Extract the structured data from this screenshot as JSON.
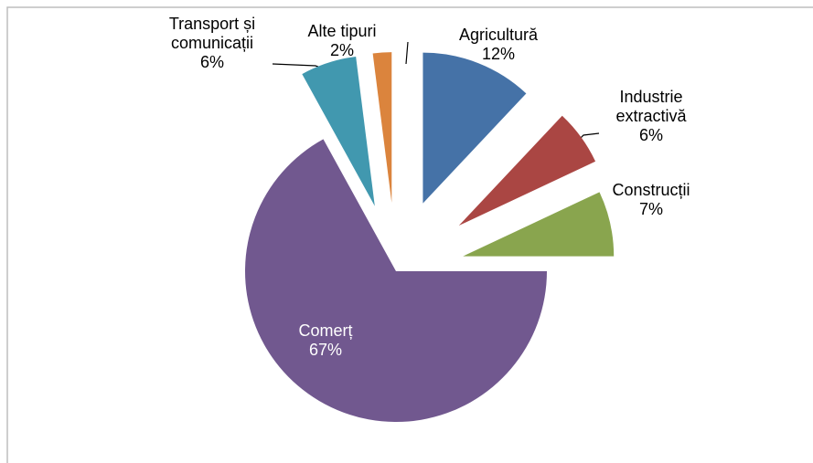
{
  "chart_data": {
    "type": "pie",
    "categories": [
      "Agricultură",
      "Industrie\nextractivă",
      "Construcții",
      "Comerț",
      "Transport și\ncomunicații",
      "Alte tipuri"
    ],
    "values": [
      12,
      6,
      7,
      67,
      6,
      2
    ],
    "value_labels": [
      "12%",
      "6%",
      "7%",
      "67%",
      "6%",
      "2%"
    ],
    "colors": [
      "#4572a7",
      "#aa4643",
      "#89a54e",
      "#71588f",
      "#4198af",
      "#db843d"
    ]
  }
}
